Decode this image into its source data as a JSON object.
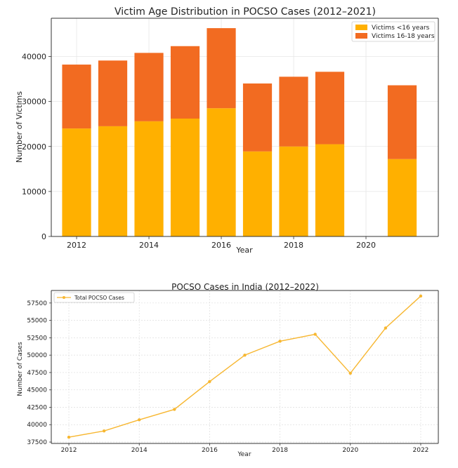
{
  "chart_data": [
    {
      "type": "bar",
      "stacked": true,
      "title": "Victim Age Distribution in POCSO Cases (2012–2021)",
      "xlabel": "Year",
      "ylabel": "Number of Victims",
      "x": [
        2012,
        2013,
        2014,
        2015,
        2016,
        2017,
        2018,
        2019,
        2021
      ],
      "series": [
        {
          "name": "Victims <16 years",
          "color": "#FFB000",
          "values": [
            24000,
            24500,
            25600,
            26200,
            28500,
            18900,
            20000,
            20500,
            17200
          ]
        },
        {
          "name": "Victims 16-18 years",
          "color": "#F26B21",
          "values": [
            14200,
            14600,
            15200,
            16100,
            17800,
            15100,
            15500,
            16100,
            16400
          ]
        }
      ],
      "xticks": [
        2012,
        2014,
        2016,
        2018,
        2020
      ],
      "xlim": [
        2011.3,
        2022.0
      ],
      "yticks": [
        0,
        10000,
        20000,
        30000,
        40000
      ],
      "ylim": [
        0,
        48500
      ],
      "grid": true,
      "legend_position": "top-right"
    },
    {
      "type": "line",
      "title": "POCSO Cases in India (2012–2022)",
      "xlabel": "Year",
      "ylabel": "Number of Cases",
      "series": [
        {
          "name": "Total POCSO Cases",
          "color": "#F7B731",
          "x": [
            2012,
            2013,
            2014,
            2015,
            2016,
            2017,
            2018,
            2019,
            2020,
            2021,
            2022
          ],
          "values": [
            38200,
            39100,
            40700,
            42200,
            46200,
            50000,
            52000,
            53000,
            47400,
            53900,
            58500
          ]
        }
      ],
      "xticks": [
        2012,
        2014,
        2016,
        2018,
        2020,
        2022
      ],
      "xlim": [
        2011.5,
        2022.5
      ],
      "yticks": [
        37500,
        40000,
        42500,
        45000,
        47500,
        50000,
        52500,
        55000,
        57500
      ],
      "ylim": [
        37300,
        59300
      ],
      "grid": true,
      "legend_position": "top-left"
    }
  ]
}
